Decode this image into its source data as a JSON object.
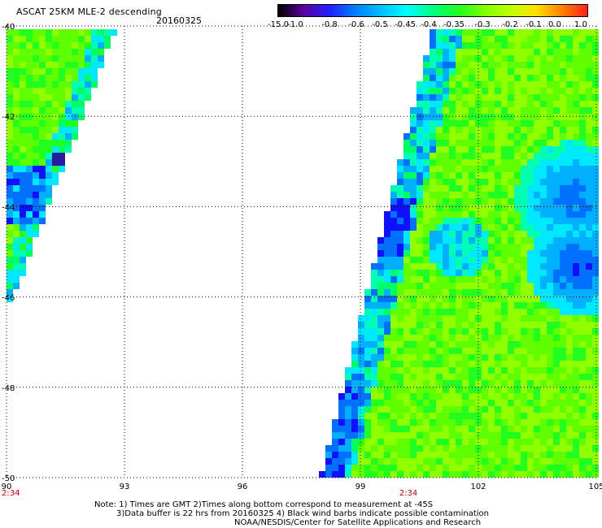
{
  "header": {
    "title": "ASCAT 25KM MLE-2 descending",
    "date": "20160325"
  },
  "colorbar": {
    "labels": [
      "-15.0",
      "-1.0",
      "-0.8",
      "-0.6",
      "-0.5",
      "-0.45",
      "-0.4",
      "-0.35",
      "-0.3",
      "-0.2",
      "-0.1",
      "0.0",
      "1.0"
    ],
    "colors": [
      "#000000",
      "#5a00a0",
      "#2020ff",
      "#0080ff",
      "#00c0ff",
      "#00ffff",
      "#00ff80",
      "#20ff20",
      "#80ff00",
      "#c0ff00",
      "#ffe000",
      "#ff8000",
      "#ff2020"
    ]
  },
  "axes": {
    "x_ticks": [
      "90",
      "93",
      "96",
      "99",
      "102",
      "105"
    ],
    "y_ticks": [
      "-40",
      "-42",
      "-44",
      "-46",
      "-48",
      "-50"
    ],
    "time_labels": [
      "2:34",
      "2:34"
    ],
    "time_color": "#cc0000"
  },
  "notes": {
    "line1": "Note: 1) Times are GMT 2)Times along bottom correspond to measurement at -45S",
    "line2": "3)Data buffer is 22 hrs from 20160325 4) Black wind barbs indicate possible contamination",
    "line3": "NOAA/NESDIS/Center for Satellite Applications and Research"
  }
}
